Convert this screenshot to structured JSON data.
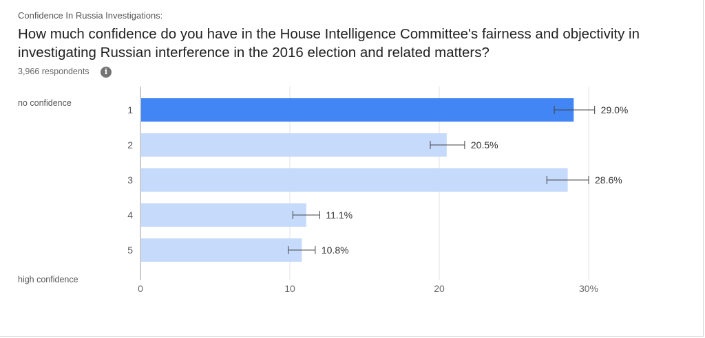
{
  "header": {
    "supertitle": "Confidence In Russia Investigations:",
    "question": "How much confidence do you have in the House Intelligence Committee's fairness and objectivity in investigating Russian interference in the 2016 election and related matters?",
    "respondents": "3,966 respondents",
    "info_icon_glyph": "i"
  },
  "scale": {
    "low_label": "no confidence",
    "high_label": "high confidence"
  },
  "colors": {
    "highlight_bar": "#4285f4",
    "bar": "#c6dafc",
    "error_bar": "#444444",
    "gridline": "#e0e0e0",
    "axis": "#9e9e9e"
  },
  "chart_data": {
    "type": "bar",
    "orientation": "horizontal",
    "categories": [
      "1",
      "2",
      "3",
      "4",
      "5"
    ],
    "values": [
      29.0,
      20.5,
      28.6,
      11.1,
      10.8
    ],
    "value_labels": [
      "29.0%",
      "20.5%",
      "28.6%",
      "11.1%",
      "10.8%"
    ],
    "error_low": [
      27.7,
      19.4,
      27.2,
      10.2,
      9.9
    ],
    "error_high": [
      30.4,
      21.7,
      30.0,
      12.0,
      11.7
    ],
    "highlighted_index": 0,
    "xlim": [
      0,
      30
    ],
    "xticks": [
      0,
      10,
      20,
      30
    ],
    "xtick_labels": [
      "0",
      "10",
      "20",
      "30%"
    ],
    "grid": true,
    "title": "",
    "xlabel": "",
    "ylabel": ""
  }
}
